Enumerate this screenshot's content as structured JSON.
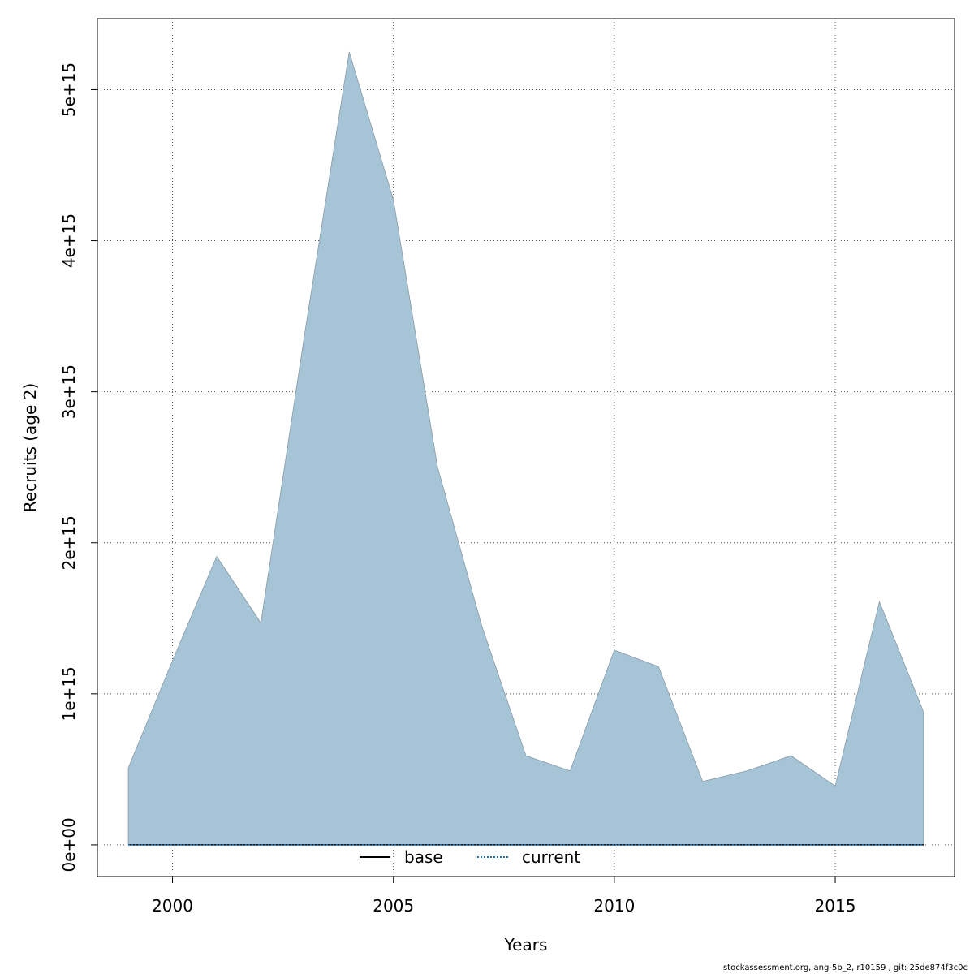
{
  "chart_data": {
    "type": "area",
    "xlabel": "Years",
    "ylabel": "Recruits (age 2)",
    "xlim": [
      1998.3,
      2017.7
    ],
    "ylim": [
      -210000000000000.0,
      5470000000000000.0
    ],
    "x_ticks": [
      2000,
      2005,
      2010,
      2015
    ],
    "x_tick_labels": [
      "2000",
      "2005",
      "2010",
      "2015"
    ],
    "y_ticks": [
      0,
      1000000000000000.0,
      2000000000000000.0,
      3000000000000000.0,
      4000000000000000.0,
      5000000000000000.0
    ],
    "y_tick_labels": [
      "0e+00",
      "1e+15",
      "2e+15",
      "3e+15",
      "4e+15",
      "5e+15"
    ],
    "grid": true,
    "legend_position": "bottom",
    "x": [
      1999,
      2000,
      2001,
      2002,
      2003,
      2004,
      2005,
      2006,
      2007,
      2008,
      2009,
      2010,
      2011,
      2012,
      2013,
      2014,
      2015,
      2016,
      2017
    ],
    "series": [
      {
        "name": "base",
        "style": "solid",
        "color": "#000000",
        "values": [
          0,
          0,
          0,
          0,
          0,
          0,
          0,
          0,
          0,
          0,
          0,
          0,
          0,
          0,
          0,
          0,
          0,
          0,
          0
        ]
      },
      {
        "name": "current",
        "style": "dotted",
        "color": "#1f6eae",
        "values": [
          0,
          0,
          0,
          0,
          0,
          0,
          0,
          0,
          0,
          0,
          0,
          0,
          0,
          0,
          0,
          0,
          0,
          0,
          0
        ]
      }
    ],
    "band": {
      "fill": "#a5c4d5",
      "upper": [
        510000000000000.0,
        1220000000000000.0,
        1910000000000000.0,
        1470000000000000.0,
        3400000000000000.0,
        5250000000000000.0,
        4270000000000000.0,
        2500000000000000.0,
        1450000000000000.0,
        590000000000000.0,
        490000000000000.0,
        1290000000000000.0,
        1180000000000000.0,
        420000000000000.0,
        490000000000000.0,
        590000000000000.0,
        390000000000000.0,
        1610000000000000.0,
        880000000000000.0
      ],
      "lower": [
        0,
        0,
        0,
        0,
        0,
        0,
        0,
        0,
        0,
        0,
        0,
        0,
        0,
        0,
        0,
        0,
        0,
        0,
        0
      ]
    }
  },
  "footer_text": "stockassessment.org, ang-5b_2, r10159 , git: 25de874f3c0c"
}
